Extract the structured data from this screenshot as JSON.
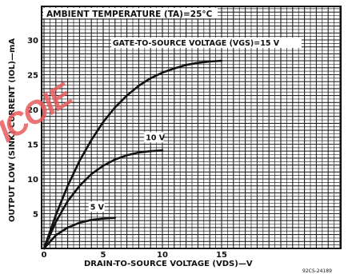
{
  "chart_data": {
    "type": "line",
    "title": "AMBIENT TEMPERATURE (TA)=25°C",
    "xlabel": "DRAIN-TO-SOURCE VOLTAGE (VDS)—V",
    "ylabel": "OUTPUT LOW (SINK) CURRENT (IOL)—mA",
    "xlim": [
      0,
      20
    ],
    "ylim": [
      0,
      35
    ],
    "x_ticks": [
      "0",
      "5",
      "10",
      "15"
    ],
    "y_ticks": [
      "5",
      "10",
      "15",
      "20",
      "25",
      "30"
    ],
    "grid": true,
    "series": [
      {
        "name": "GATE-TO-SOURCE VOLTAGE (VGS)=15 V",
        "x": [
          0,
          1,
          2,
          3,
          4,
          5,
          6,
          7,
          8,
          9,
          10,
          11,
          12,
          13,
          14,
          15
        ],
        "y": [
          0,
          4.8,
          9.0,
          12.6,
          15.6,
          18.2,
          20.3,
          22.0,
          23.4,
          24.5,
          25.3,
          25.9,
          26.4,
          26.7,
          26.9,
          27.0
        ]
      },
      {
        "name": "10 V",
        "x": [
          0,
          1,
          2,
          3,
          4,
          5,
          6,
          7,
          8,
          9,
          10
        ],
        "y": [
          0,
          3.8,
          6.8,
          9.0,
          10.7,
          11.9,
          12.8,
          13.4,
          13.8,
          14.0,
          14.1
        ]
      },
      {
        "name": "5 V",
        "x": [
          0,
          1,
          2,
          3,
          4,
          5,
          6
        ],
        "y": [
          0,
          1.9,
          3.0,
          3.7,
          4.1,
          4.3,
          4.4
        ]
      }
    ]
  },
  "figure_code": "92CS-24189",
  "watermark": "ICOIE"
}
